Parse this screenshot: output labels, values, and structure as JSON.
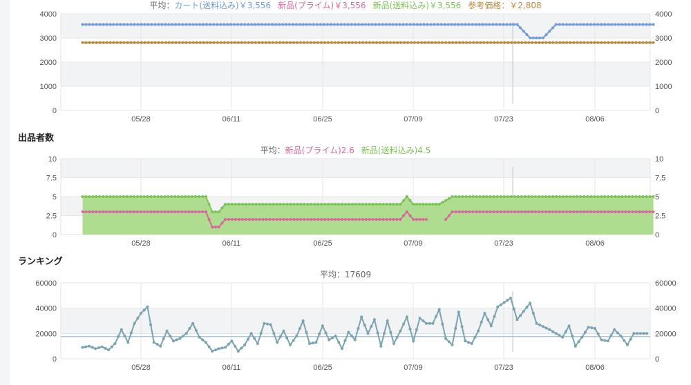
{
  "colors": {
    "cart": "#6f9bd8",
    "prime": "#d9679e",
    "shipping": "#7cc453",
    "reference": "#b98a3e",
    "ranking": "#7aa3b0",
    "label": "#666666"
  },
  "x_ticks": [
    "05/28",
    "06/11",
    "06/25",
    "07/09",
    "07/23",
    "08/06"
  ],
  "sections": {
    "sellers_title": "出品者数",
    "ranking_title": "ランキング"
  },
  "chart_data": [
    {
      "type": "line",
      "legend": {
        "avg_label": "平均：",
        "items": [
          {
            "text": "カート(送料込み)￥3,556",
            "color": "#6f9bd8"
          },
          {
            "text": "新品(プライム)￥3,556",
            "color": "#d9679e"
          },
          {
            "text": "新品(送料込み)￥3,556",
            "color": "#7cc453"
          },
          {
            "text": "参考価格：￥2,808",
            "color": "#b98a3e"
          }
        ]
      },
      "ylim": [
        0,
        4000
      ],
      "yticks": [
        "0",
        "1000",
        "2000",
        "3000",
        "4000"
      ],
      "x_range": [
        "05/19",
        "08/15"
      ],
      "series": [
        {
          "name": "カート(送料込み)",
          "color": "#6f9bd8",
          "points": [
            [
              "05/19",
              3556
            ],
            [
              "07/25",
              3556
            ],
            [
              "07/27",
              3000
            ],
            [
              "07/29",
              3000
            ],
            [
              "07/31",
              3556
            ],
            [
              "08/15",
              3556
            ]
          ]
        },
        {
          "name": "参考価格",
          "color": "#b98a3e",
          "points": [
            [
              "05/19",
              2808
            ],
            [
              "08/15",
              2808
            ]
          ]
        }
      ]
    },
    {
      "type": "area",
      "legend": {
        "avg_label": "平均：",
        "items": [
          {
            "text": "新品(プライム)2.6",
            "color": "#d9679e"
          },
          {
            "text": "新品(送料込み)4.5",
            "color": "#7cc453"
          }
        ]
      },
      "ylim": [
        0,
        10
      ],
      "yticks": [
        "0",
        "2.5",
        "5",
        "7.5",
        "10"
      ],
      "x_range": [
        "05/19",
        "08/15"
      ],
      "series": [
        {
          "name": "新品(送料込み)",
          "color": "#7cc453",
          "points": [
            [
              "05/19",
              5
            ],
            [
              "06/07",
              5
            ],
            [
              "06/08",
              3
            ],
            [
              "06/09",
              3
            ],
            [
              "06/10",
              4
            ],
            [
              "07/07",
              4
            ],
            [
              "07/08",
              5
            ],
            [
              "07/09",
              4
            ],
            [
              "07/13",
              4
            ],
            [
              "07/15",
              5
            ],
            [
              "08/15",
              5
            ]
          ]
        },
        {
          "name": "新品(プライム)",
          "color": "#d9679e",
          "points": [
            [
              "05/19",
              3
            ],
            [
              "06/07",
              3
            ],
            [
              "06/08",
              1
            ],
            [
              "06/09",
              1
            ],
            [
              "06/10",
              2
            ],
            [
              "07/07",
              2
            ],
            [
              "07/08",
              3
            ],
            [
              "07/09",
              2
            ],
            [
              "07/11",
              2
            ],
            null,
            [
              "07/14",
              2
            ],
            [
              "07/15",
              3
            ],
            [
              "08/15",
              3
            ]
          ]
        }
      ]
    },
    {
      "type": "line",
      "legend": {
        "text": "平均：17609"
      },
      "ylim": [
        0,
        60000
      ],
      "yticks": [
        "0",
        "20000",
        "40000",
        "60000"
      ],
      "x_range": [
        "05/19",
        "08/15"
      ],
      "average": 17609,
      "series": [
        {
          "name": "ランキング",
          "color": "#7aa3b0",
          "points": [
            [
              "05/19",
              9000
            ],
            [
              "05/20",
              10000
            ],
            [
              "05/21",
              8000
            ],
            [
              "05/22",
              9500
            ],
            [
              "05/23",
              7000
            ],
            [
              "05/24",
              12000
            ],
            [
              "05/25",
              23000
            ],
            [
              "05/26",
              13000
            ],
            [
              "05/27",
              28000
            ],
            [
              "05/28",
              36000
            ],
            [
              "05/29",
              41000
            ],
            [
              "05/30",
              13000
            ],
            [
              "05/31",
              10000
            ],
            [
              "06/01",
              22000
            ],
            [
              "06/02",
              14000
            ],
            [
              "06/03",
              16000
            ],
            [
              "06/04",
              20000
            ],
            [
              "06/05",
              28000
            ],
            [
              "06/06",
              17000
            ],
            [
              "06/07",
              13000
            ],
            [
              "06/08",
              6000
            ],
            [
              "06/09",
              8000
            ],
            [
              "06/10",
              9000
            ],
            [
              "06/11",
              14000
            ],
            [
              "06/12",
              6000
            ],
            [
              "06/13",
              11000
            ],
            [
              "06/14",
              20000
            ],
            [
              "06/15",
              12000
            ],
            [
              "06/16",
              28000
            ],
            [
              "06/17",
              27000
            ],
            [
              "06/18",
              13000
            ],
            [
              "06/19",
              22000
            ],
            [
              "06/20",
              11000
            ],
            [
              "06/21",
              18000
            ],
            [
              "06/22",
              30000
            ],
            [
              "06/23",
              12000
            ],
            [
              "06/24",
              13000
            ],
            [
              "06/25",
              26000
            ],
            [
              "06/26",
              15000
            ],
            [
              "06/27",
              18000
            ],
            [
              "06/28",
              8000
            ],
            [
              "06/29",
              21000
            ],
            [
              "06/30",
              15000
            ],
            [
              "07/01",
              33000
            ],
            [
              "07/02",
              20000
            ],
            [
              "07/03",
              31000
            ],
            [
              "07/04",
              10000
            ],
            [
              "07/05",
              30000
            ],
            [
              "07/06",
              12000
            ],
            [
              "07/07",
              22000
            ],
            [
              "07/08",
              33000
            ],
            [
              "07/09",
              14000
            ],
            [
              "07/10",
              32000
            ],
            [
              "07/11",
              28000
            ],
            [
              "07/12",
              28000
            ],
            [
              "07/13",
              39000
            ],
            [
              "07/14",
              16000
            ],
            [
              "07/15",
              11000
            ],
            [
              "07/16",
              37000
            ],
            [
              "07/17",
              14000
            ],
            [
              "07/18",
              12000
            ],
            [
              "07/19",
              22000
            ],
            [
              "07/20",
              36000
            ],
            [
              "07/21",
              26000
            ],
            [
              "07/22",
              41000
            ],
            [
              "07/24",
              48000
            ],
            [
              "07/25",
              31000
            ],
            [
              "07/27",
              44000
            ],
            [
              "07/28",
              28000
            ],
            [
              "07/30",
              23000
            ],
            [
              "08/01",
              17000
            ],
            [
              "08/02",
              26000
            ],
            [
              "08/03",
              10000
            ],
            [
              "08/04",
              17000
            ],
            [
              "08/05",
              25000
            ],
            [
              "08/06",
              24000
            ],
            [
              "08/07",
              15000
            ],
            [
              "08/08",
              14000
            ],
            [
              "08/09",
              23000
            ],
            [
              "08/10",
              18000
            ],
            [
              "08/11",
              11000
            ],
            [
              "08/12",
              20000
            ],
            [
              "08/14",
              20000
            ]
          ]
        }
      ]
    }
  ]
}
